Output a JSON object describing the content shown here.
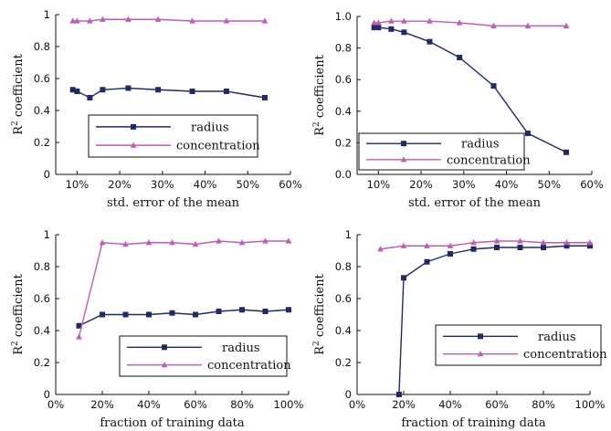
{
  "colors": {
    "radius": "#1f2a6b",
    "concentration": "#c25bb6"
  },
  "chart_data": [
    {
      "type": "line",
      "xlabel": "std. error of the mean",
      "ylabel": "R2 coefficient",
      "xlim": [
        5,
        60
      ],
      "ylim": [
        0,
        1
      ],
      "xticks": [
        "10%",
        "20%",
        "30%",
        "40%",
        "50%",
        "60%"
      ],
      "yticks": [
        "0",
        "0.2",
        "0.4",
        "0.6",
        "0.8",
        "1"
      ],
      "x": [
        9,
        10,
        13,
        16,
        22,
        29,
        37,
        45,
        54
      ],
      "series": [
        {
          "name": "radius",
          "marker": "square",
          "values": [
            0.53,
            0.52,
            0.48,
            0.53,
            0.54,
            0.53,
            0.52,
            0.52,
            0.48
          ]
        },
        {
          "name": "concentration",
          "marker": "triangle",
          "values": [
            0.96,
            0.96,
            0.96,
            0.97,
            0.97,
            0.97,
            0.96,
            0.96,
            0.96
          ]
        }
      ],
      "legend_position": "center-left"
    },
    {
      "type": "line",
      "xlabel": "std. error of the mean",
      "ylabel": "R2 coefficient",
      "xlim": [
        5,
        60
      ],
      "ylim": [
        0,
        1
      ],
      "xticks": [
        "10%",
        "20%",
        "30%",
        "40%",
        "50%",
        "60%"
      ],
      "yticks": [
        "0.0",
        "0.2",
        "0.4",
        "0.6",
        "0.8",
        "1.0"
      ],
      "x": [
        9,
        10,
        13,
        16,
        22,
        29,
        37,
        45,
        54
      ],
      "series": [
        {
          "name": "radius",
          "marker": "square",
          "values": [
            0.93,
            0.93,
            0.92,
            0.9,
            0.84,
            0.74,
            0.56,
            0.26,
            0.14
          ]
        },
        {
          "name": "concentration",
          "marker": "triangle",
          "values": [
            0.96,
            0.96,
            0.97,
            0.97,
            0.97,
            0.96,
            0.94,
            0.94,
            0.94
          ]
        }
      ],
      "legend_position": "bottom-left"
    },
    {
      "type": "line",
      "xlabel": "fraction of training data",
      "ylabel": "R2 coefficient",
      "xlim": [
        0,
        100
      ],
      "ylim": [
        0,
        1
      ],
      "xticks": [
        "0%",
        "20%",
        "40%",
        "60%",
        "80%",
        "100%"
      ],
      "yticks": [
        "0",
        "0.2",
        "0.4",
        "0.6",
        "0.8",
        "1"
      ],
      "x": [
        10,
        20,
        30,
        40,
        50,
        60,
        70,
        80,
        90,
        100
      ],
      "series": [
        {
          "name": "radius",
          "marker": "square",
          "values": [
            0.43,
            0.5,
            0.5,
            0.5,
            0.51,
            0.5,
            0.52,
            0.53,
            0.52,
            0.53
          ]
        },
        {
          "name": "concentration",
          "marker": "triangle",
          "values": [
            0.36,
            0.95,
            0.94,
            0.95,
            0.95,
            0.94,
            0.96,
            0.95,
            0.96,
            0.96
          ]
        }
      ],
      "legend_position": "bottom-right"
    },
    {
      "type": "line",
      "xlabel": "fraction of training data",
      "ylabel": "R2 coefficient",
      "xlim": [
        0,
        100
      ],
      "ylim": [
        0,
        1
      ],
      "xticks": [
        "0%",
        "20%",
        "40%",
        "60%",
        "80%",
        "100%"
      ],
      "yticks": [
        "0",
        "0.2",
        "0.4",
        "0.6",
        "0.8",
        "1"
      ],
      "x": [
        18,
        20,
        30,
        40,
        50,
        60,
        70,
        80,
        90,
        100
      ],
      "series": [
        {
          "name": "radius",
          "marker": "square",
          "values": [
            0.0,
            0.73,
            0.83,
            0.88,
            0.91,
            0.92,
            0.92,
            0.92,
            0.93,
            0.93
          ]
        },
        {
          "name": "concentration",
          "marker": "triangle",
          "x": [
            10,
            20,
            30,
            40,
            50,
            60,
            70,
            80,
            90,
            100
          ],
          "values": [
            0.91,
            0.93,
            0.93,
            0.93,
            0.95,
            0.96,
            0.96,
            0.95,
            0.95,
            0.95
          ]
        }
      ],
      "legend_position": "bottom-right"
    }
  ]
}
